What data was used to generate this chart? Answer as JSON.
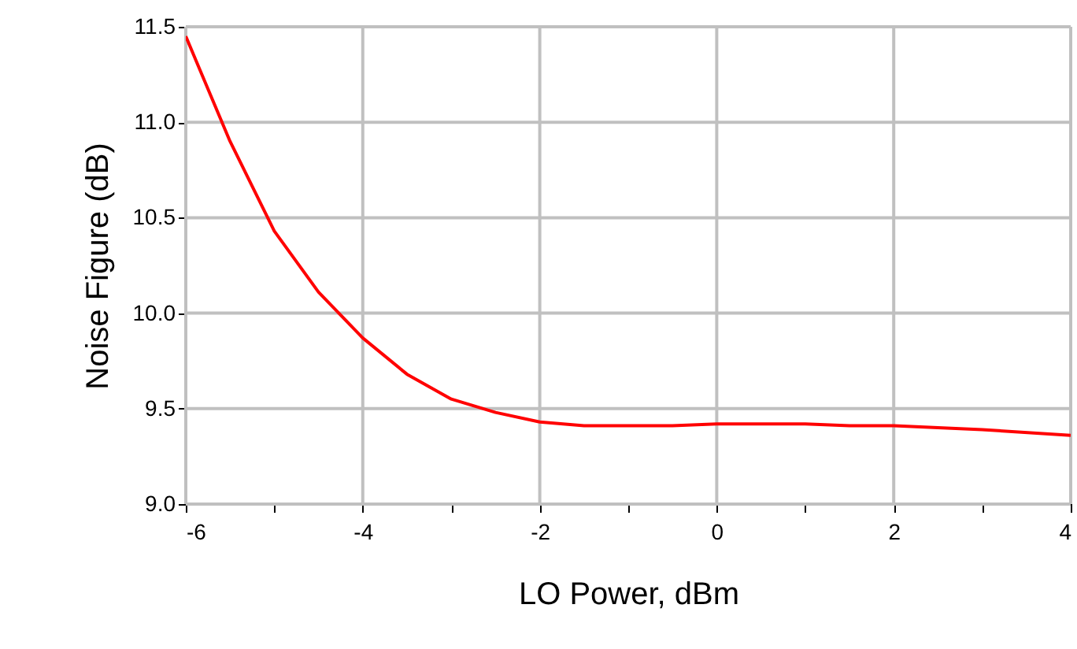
{
  "chart_data": {
    "type": "line",
    "xlabel": "LO Power, dBm",
    "ylabel": "Noise Figure (dB)",
    "x": [
      -6,
      -5.5,
      -5,
      -4.5,
      -4,
      -3.5,
      -3,
      -2.5,
      -2,
      -1.5,
      -1,
      -0.5,
      0,
      1,
      1.5,
      2,
      3,
      4
    ],
    "series": [
      {
        "color": "#ff0000",
        "values": [
          11.45,
          10.9,
          10.43,
          10.11,
          9.87,
          9.68,
          9.55,
          9.48,
          9.43,
          9.41,
          9.41,
          9.41,
          9.42,
          9.42,
          9.41,
          9.41,
          9.39,
          9.36
        ]
      }
    ],
    "xlim": [
      -6,
      4
    ],
    "xticks": [
      -6,
      {
        "value": -5,
        "label": null
      },
      -4,
      {
        "value": -3,
        "label": null
      },
      -2,
      {
        "value": -1,
        "label": null
      },
      0,
      {
        "value": 1,
        "label": null
      },
      2,
      {
        "value": 3,
        "label": null
      },
      4
    ],
    "ylim": [
      9.0,
      11.5
    ],
    "yticks": [
      {
        "value": 9.0,
        "label": "9.0"
      },
      9.5,
      {
        "value": 10.0,
        "label": "10.0"
      },
      10.5,
      {
        "value": 11.0,
        "label": "11.0"
      },
      11.5
    ],
    "grid": true,
    "marker": "none",
    "line_style": "solid"
  }
}
